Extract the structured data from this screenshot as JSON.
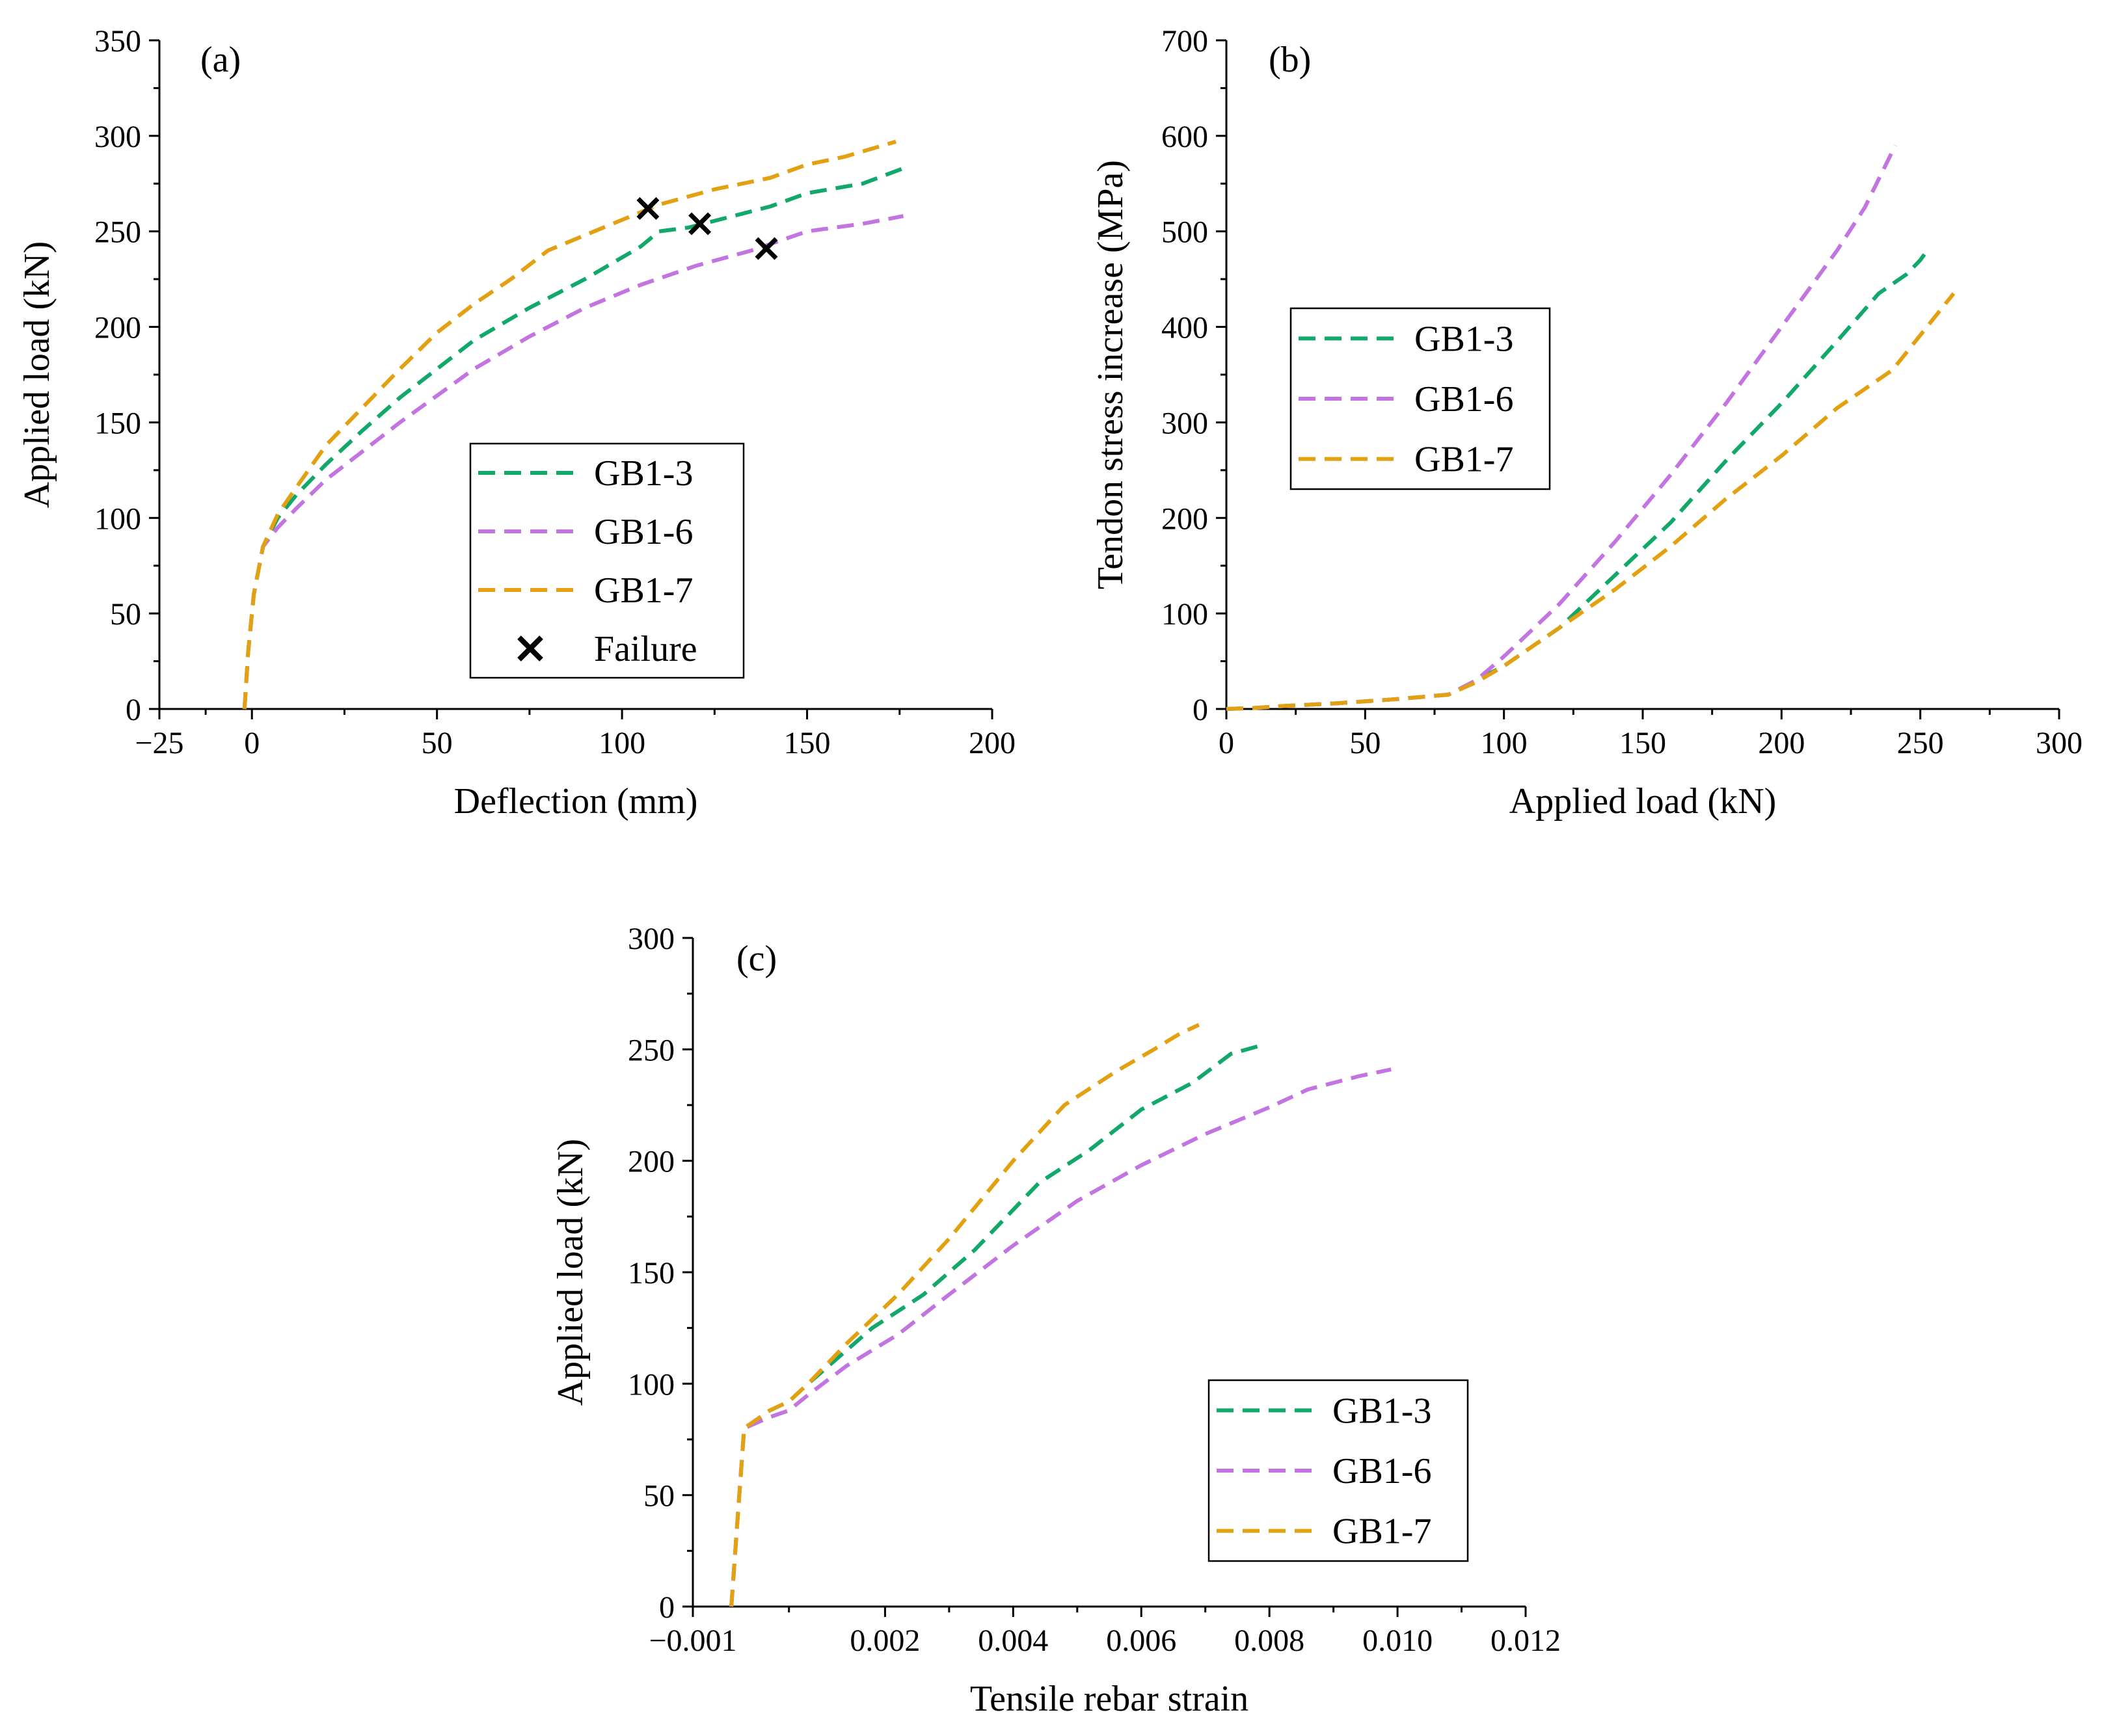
{
  "colors": {
    "GB1-3": "#11a86a",
    "GB1-6": "#c274e0",
    "GB1-7": "#e3a010",
    "failure": "#000000"
  },
  "chart_data": [
    {
      "id": "a",
      "type": "line",
      "panel_label": "(a)",
      "xlabel": "Deflection (mm)",
      "ylabel": "Applied load (kN)",
      "xlim": [
        -25,
        200
      ],
      "ylim": [
        0,
        350
      ],
      "xticks": [
        -25,
        0,
        50,
        100,
        150,
        200
      ],
      "xtick_labels": [
        "−25",
        "0",
        "50",
        "100",
        "150",
        "200"
      ],
      "yticks": [
        0,
        50,
        100,
        150,
        200,
        250,
        300,
        350
      ],
      "ytick_labels": [
        "0",
        "50",
        "100",
        "150",
        "200",
        "250",
        "300",
        "350"
      ],
      "legend_position": "center",
      "series": [
        {
          "name": "GB1-3",
          "line": "dashed",
          "x": [
            -2,
            -1,
            0.5,
            3,
            7,
            12,
            20,
            30,
            40,
            50,
            60,
            75,
            90,
            105,
            110,
            118,
            130,
            140,
            150,
            165,
            176
          ],
          "y": [
            0,
            30,
            60,
            85,
            100,
            112,
            128,
            146,
            163,
            178,
            193,
            210,
            225,
            242,
            250,
            252,
            258,
            263,
            270,
            275,
            283
          ]
        },
        {
          "name": "GB1-6",
          "line": "dashed",
          "x": [
            -2,
            -1,
            0.5,
            3,
            7,
            12,
            20,
            30,
            40,
            50,
            60,
            75,
            90,
            105,
            120,
            135,
            150,
            165,
            176
          ],
          "y": [
            0,
            30,
            60,
            85,
            95,
            105,
            120,
            135,
            150,
            164,
            178,
            195,
            210,
            222,
            232,
            240,
            250,
            254,
            258
          ]
        },
        {
          "name": "GB1-7",
          "line": "dashed",
          "x": [
            -2,
            -1,
            0.5,
            3,
            7,
            12,
            20,
            30,
            40,
            50,
            60,
            70,
            80,
            95,
            110,
            125,
            140,
            150,
            160,
            174
          ],
          "y": [
            0,
            30,
            60,
            85,
            102,
            116,
            138,
            158,
            178,
            197,
            212,
            225,
            240,
            252,
            264,
            272,
            278,
            285,
            289,
            297
          ]
        },
        {
          "name": "Failure",
          "marker": "x",
          "x": [
            107,
            121,
            139
          ],
          "y": [
            262,
            254,
            241
          ]
        }
      ]
    },
    {
      "id": "b",
      "type": "line",
      "panel_label": "(b)",
      "xlabel": "Applied load (kN)",
      "ylabel": "Tendon stress increase (MPa)",
      "xlim": [
        0,
        300
      ],
      "ylim": [
        0,
        700
      ],
      "xticks": [
        0,
        50,
        100,
        150,
        200,
        250,
        300
      ],
      "xtick_labels": [
        "0",
        "50",
        "100",
        "150",
        "200",
        "250",
        "300"
      ],
      "yticks": [
        0,
        100,
        200,
        300,
        400,
        500,
        600,
        700
      ],
      "ytick_labels": [
        "0",
        "100",
        "200",
        "300",
        "400",
        "500",
        "600",
        "700"
      ],
      "legend_position": "upper-left",
      "series": [
        {
          "name": "GB1-3",
          "line": "dashed",
          "x": [
            0,
            10,
            20,
            40,
            60,
            80,
            90,
            100,
            120,
            140,
            160,
            180,
            200,
            220,
            235,
            245,
            250,
            252
          ],
          "y": [
            0,
            1,
            3,
            6,
            10,
            15,
            30,
            45,
            85,
            140,
            195,
            260,
            320,
            385,
            435,
            455,
            470,
            478
          ]
        },
        {
          "name": "GB1-6",
          "line": "dashed",
          "x": [
            0,
            10,
            20,
            40,
            60,
            80,
            90,
            100,
            120,
            140,
            160,
            180,
            200,
            220,
            230,
            241
          ],
          "y": [
            0,
            1,
            3,
            6,
            10,
            15,
            30,
            55,
            110,
            175,
            245,
            320,
            400,
            480,
            525,
            590
          ]
        },
        {
          "name": "GB1-7",
          "line": "dashed",
          "x": [
            0,
            10,
            20,
            40,
            60,
            80,
            90,
            100,
            120,
            140,
            160,
            180,
            200,
            220,
            240,
            262
          ],
          "y": [
            0,
            1,
            3,
            6,
            10,
            15,
            28,
            45,
            85,
            125,
            170,
            220,
            265,
            315,
            355,
            435
          ]
        }
      ]
    },
    {
      "id": "c",
      "type": "line",
      "panel_label": "(c)",
      "xlabel": "Tensile rebar strain",
      "ylabel": "Applied load (kN)",
      "xlim": [
        -0.001,
        0.012
      ],
      "ylim": [
        0,
        300
      ],
      "xticks": [
        -0.001,
        0.002,
        0.004,
        0.006,
        0.008,
        0.01,
        0.012
      ],
      "xtick_labels": [
        "−0.001",
        "0.002",
        "0.004",
        "0.006",
        "0.008",
        "0.010",
        "0.012"
      ],
      "yticks": [
        0,
        50,
        100,
        150,
        200,
        250,
        300
      ],
      "ytick_labels": [
        "0",
        "50",
        "100",
        "150",
        "200",
        "250",
        "300"
      ],
      "legend_position": "lower-right",
      "series": [
        {
          "name": "GB1-3",
          "line": "dashed",
          "x": [
            -0.0004,
            -0.0003,
            -0.0002,
            0.0002,
            0.0005,
            0.0008,
            0.0012,
            0.0018,
            0.0026,
            0.0034,
            0.0044,
            0.0052,
            0.006,
            0.0068,
            0.0074,
            0.0079
          ],
          "y": [
            0,
            40,
            80,
            88,
            92,
            100,
            110,
            125,
            140,
            160,
            190,
            205,
            223,
            235,
            248,
            252
          ]
        },
        {
          "name": "GB1-6",
          "line": "dashed",
          "x": [
            -0.0004,
            -0.0003,
            -0.0002,
            0.0002,
            0.0005,
            0.0008,
            0.0014,
            0.0022,
            0.003,
            0.004,
            0.005,
            0.006,
            0.007,
            0.008,
            0.0086,
            0.0094,
            0.0099
          ],
          "y": [
            0,
            40,
            80,
            85,
            88,
            95,
            108,
            122,
            140,
            162,
            182,
            198,
            212,
            224,
            232,
            238,
            241
          ]
        },
        {
          "name": "GB1-7",
          "line": "dashed",
          "x": [
            -0.0004,
            -0.0003,
            -0.0002,
            0.0002,
            0.0005,
            0.0008,
            0.0014,
            0.0022,
            0.003,
            0.004,
            0.0048,
            0.0056,
            0.0062,
            0.0066,
            0.0069
          ],
          "y": [
            0,
            40,
            80,
            88,
            92,
            100,
            118,
            140,
            165,
            200,
            225,
            240,
            250,
            257,
            261
          ]
        }
      ]
    }
  ]
}
